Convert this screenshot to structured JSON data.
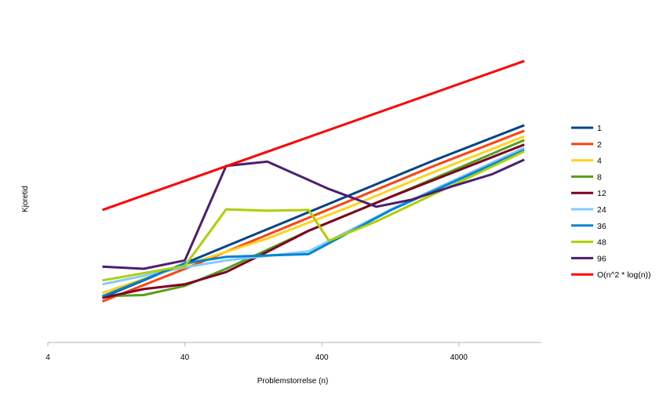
{
  "chart_data": {
    "type": "line",
    "title": "",
    "xlabel": "Problemstorrelse (n)",
    "ylabel": "Kjoretid",
    "xscale": "log",
    "xlim": [
      4,
      16000
    ],
    "yscale": "log",
    "x_ticks": [
      {
        "value": 4,
        "label": "4"
      },
      {
        "value": 40,
        "label": "40"
      },
      {
        "value": 400,
        "label": "400"
      },
      {
        "value": 4000,
        "label": "4000"
      }
    ],
    "grid": false,
    "legend_position": "right",
    "series": [
      {
        "name": "1",
        "color": "#004586",
        "x": [
          10,
          40,
          160,
          640,
          2560,
          12000
        ],
        "y": [
          0.01,
          0.04,
          0.16,
          0.64,
          2.56,
          11.0
        ]
      },
      {
        "name": "2",
        "color": "#ff420e",
        "x": [
          10,
          40,
          160,
          640,
          2560,
          12000
        ],
        "y": [
          0.0085,
          0.032,
          0.128,
          0.51,
          2.05,
          8.8
        ]
      },
      {
        "name": "4",
        "color": "#ffd320",
        "x": [
          10,
          40,
          160,
          640,
          2560,
          12000
        ],
        "y": [
          0.012,
          0.037,
          0.11,
          0.4,
          1.6,
          7.0
        ]
      },
      {
        "name": "8",
        "color": "#579d1c",
        "x": [
          10,
          20,
          40,
          80,
          320,
          1280,
          12000
        ],
        "y": [
          0.0105,
          0.011,
          0.016,
          0.032,
          0.15,
          0.6,
          6.0
        ]
      },
      {
        "name": "12",
        "color": "#7e0021",
        "x": [
          10,
          20,
          40,
          80,
          160,
          320,
          1280,
          12000
        ],
        "y": [
          0.0098,
          0.014,
          0.017,
          0.028,
          0.064,
          0.15,
          0.6,
          5.0
        ]
      },
      {
        "name": "24",
        "color": "#83caff",
        "x": [
          10,
          40,
          80,
          320,
          1280,
          12000
        ],
        "y": [
          0.017,
          0.034,
          0.045,
          0.065,
          0.36,
          4.4
        ]
      },
      {
        "name": "36",
        "color": "#0084d1",
        "x": [
          10,
          40,
          80,
          320,
          1280,
          12000
        ],
        "y": [
          0.0105,
          0.04,
          0.052,
          0.058,
          0.35,
          4.0
        ]
      },
      {
        "name": "48",
        "color": "#aecf00",
        "x": [
          10,
          40,
          80,
          160,
          320,
          450,
          1000,
          12000
        ],
        "y": [
          0.02,
          0.036,
          0.36,
          0.34,
          0.35,
          0.1,
          0.22,
          3.8
        ]
      },
      {
        "name": "96",
        "color": "#4b1f6f",
        "x": [
          10,
          20,
          40,
          80,
          160,
          450,
          1000,
          1800,
          3500,
          7000,
          12000
        ],
        "y": [
          0.035,
          0.032,
          0.045,
          2.1,
          2.5,
          0.82,
          0.4,
          0.53,
          0.9,
          1.5,
          2.7
        ]
      },
      {
        "name": "O(n^2 * log(n))",
        "color": "#ff0000",
        "x": [
          10,
          12000
        ],
        "y": [
          0.35,
          150.0
        ]
      }
    ]
  }
}
